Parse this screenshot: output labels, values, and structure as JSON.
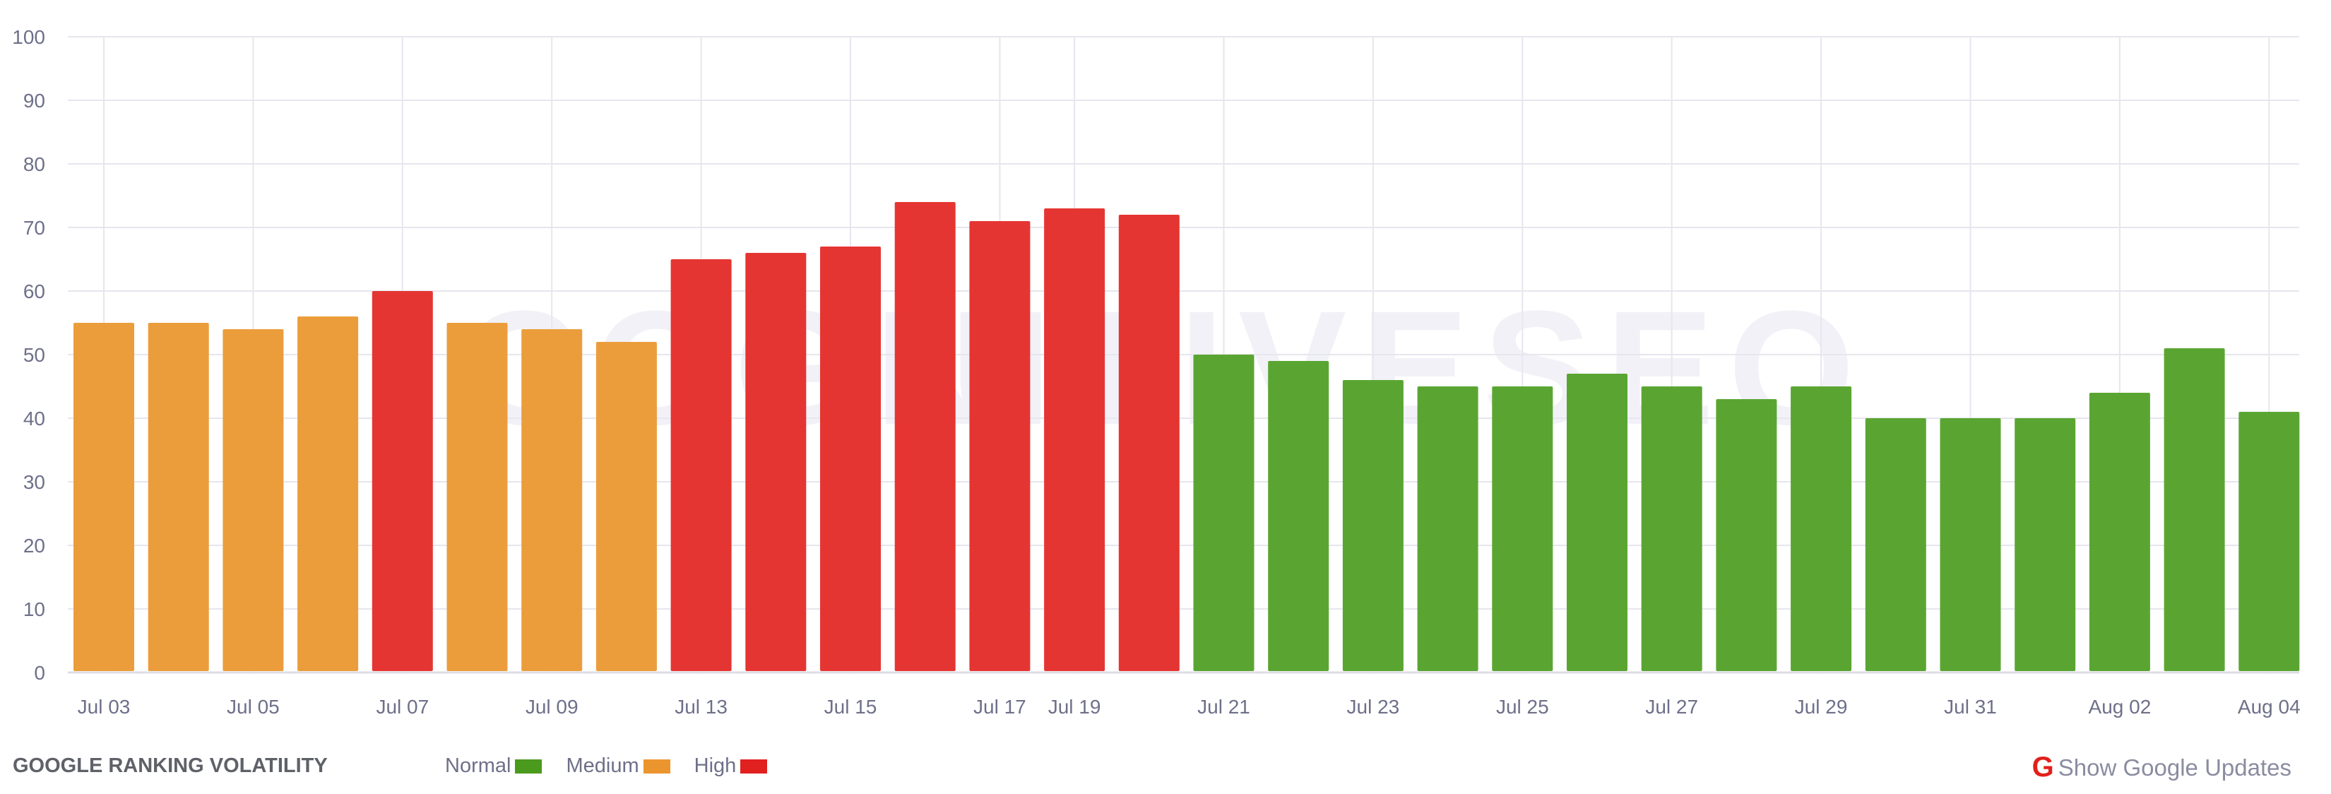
{
  "chart_data": {
    "type": "bar",
    "title": "",
    "xlabel": "",
    "ylabel": "",
    "ylim": [
      0,
      100
    ],
    "yticks": [
      "0",
      "10",
      "20",
      "30",
      "40",
      "50",
      "60",
      "70",
      "80",
      "90",
      "100"
    ],
    "grid": true,
    "values": [
      55,
      55,
      54,
      56,
      60,
      55,
      54,
      52,
      65,
      66,
      67,
      74,
      71,
      73,
      72,
      50,
      49,
      46,
      45,
      45,
      47,
      45,
      43,
      45,
      40,
      40,
      40,
      44,
      51,
      41
    ],
    "levels": [
      "Medium",
      "Medium",
      "Medium",
      "Medium",
      "High",
      "Medium",
      "Medium",
      "Medium",
      "High",
      "High",
      "High",
      "High",
      "High",
      "High",
      "High",
      "Normal",
      "Normal",
      "Normal",
      "Normal",
      "Normal",
      "Normal",
      "Normal",
      "Normal",
      "Normal",
      "Normal",
      "Normal",
      "Normal",
      "Normal",
      "Normal",
      "Normal"
    ],
    "xtick_labels": [
      {
        "bar": 1,
        "label": "Jul 03"
      },
      {
        "bar": 3,
        "label": "Jul 05"
      },
      {
        "bar": 5,
        "label": "Jul 07"
      },
      {
        "bar": 7,
        "label": "Jul 09"
      },
      {
        "bar": 9,
        "label": "Jul 13"
      },
      {
        "bar": 11,
        "label": "Jul 15"
      },
      {
        "bar": 13,
        "label": "Jul 17"
      },
      {
        "bar": 14,
        "label": "Jul 19"
      },
      {
        "bar": 16,
        "label": "Jul 21"
      },
      {
        "bar": 18,
        "label": "Jul 23"
      },
      {
        "bar": 20,
        "label": "Jul 25"
      },
      {
        "bar": 22,
        "label": "Jul 27"
      },
      {
        "bar": 24,
        "label": "Jul 29"
      },
      {
        "bar": 26,
        "label": "Jul 31"
      },
      {
        "bar": 28,
        "label": "Aug 02"
      },
      {
        "bar": 30,
        "label": "Aug 04"
      }
    ],
    "colors": {
      "Normal": "#5aa532",
      "Medium": "#eb9d3c",
      "High": "#e53532"
    },
    "legend_placement": "bottom-left"
  },
  "watermark": "COGNITIVESEO",
  "footer": {
    "title": "GOOGLE RANKING VOLATILITY",
    "legend": [
      {
        "label": "Normal",
        "color": "#4a9a1e"
      },
      {
        "label": "Medium",
        "color": "#eb952e"
      },
      {
        "label": "High",
        "color": "#e12020"
      }
    ],
    "google_icon": "G",
    "show_updates": "Show Google Updates"
  }
}
